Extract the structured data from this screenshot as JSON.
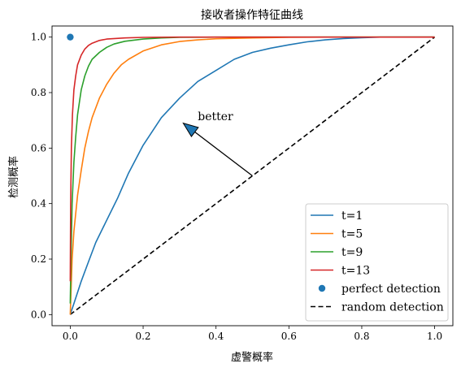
{
  "chart_data": {
    "type": "line",
    "title": "接收者操作特征曲线",
    "xlabel": "虚警概率",
    "ylabel": "检测概率",
    "xlim": [
      -0.05,
      1.05
    ],
    "ylim": [
      -0.04,
      1.04
    ],
    "xticks": [
      0.0,
      0.2,
      0.4,
      0.6,
      0.8,
      1.0
    ],
    "yticks": [
      0.0,
      0.2,
      0.4,
      0.6,
      0.8,
      1.0
    ],
    "tick_labels_x": [
      "0.0",
      "0.2",
      "0.4",
      "0.6",
      "0.8",
      "1.0"
    ],
    "tick_labels_y": [
      "0.0",
      "0.2",
      "0.4",
      "0.6",
      "0.8",
      "1.0"
    ],
    "grid": false,
    "legend_position": "lower-right",
    "series": [
      {
        "name": "t=1",
        "color": "#1f77b4",
        "x": [
          0.0,
          0.01,
          0.02,
          0.03,
          0.05,
          0.07,
          0.1,
          0.13,
          0.16,
          0.2,
          0.25,
          0.3,
          0.35,
          0.4,
          0.45,
          0.5,
          0.55,
          0.6,
          0.65,
          0.7,
          0.75,
          0.8,
          0.85,
          0.9,
          0.95,
          1.0
        ],
        "y": [
          0.0,
          0.04,
          0.08,
          0.12,
          0.19,
          0.26,
          0.34,
          0.42,
          0.51,
          0.61,
          0.71,
          0.78,
          0.84,
          0.88,
          0.92,
          0.945,
          0.96,
          0.972,
          0.983,
          0.99,
          0.995,
          0.998,
          1.0,
          1.0,
          1.0,
          1.0
        ]
      },
      {
        "name": "t=5",
        "color": "#ff7f0e",
        "x": [
          0.0,
          0.005,
          0.01,
          0.02,
          0.03,
          0.04,
          0.05,
          0.06,
          0.08,
          0.1,
          0.12,
          0.14,
          0.16,
          0.2,
          0.25,
          0.3,
          0.35,
          0.4,
          0.5,
          0.6,
          0.7,
          0.8,
          0.9,
          1.0
        ],
        "y": [
          0.0,
          0.2,
          0.3,
          0.43,
          0.52,
          0.6,
          0.66,
          0.71,
          0.78,
          0.83,
          0.87,
          0.9,
          0.92,
          0.95,
          0.972,
          0.984,
          0.99,
          0.994,
          0.997,
          0.999,
          1.0,
          1.0,
          1.0,
          1.0
        ]
      },
      {
        "name": "t=9",
        "color": "#2ca02c",
        "x": [
          0.0,
          0.002,
          0.005,
          0.01,
          0.015,
          0.02,
          0.03,
          0.04,
          0.05,
          0.06,
          0.08,
          0.1,
          0.12,
          0.15,
          0.2,
          0.25,
          0.3,
          0.4,
          0.5,
          0.6,
          0.7,
          0.8,
          0.9,
          1.0
        ],
        "y": [
          0.04,
          0.2,
          0.4,
          0.55,
          0.64,
          0.72,
          0.81,
          0.86,
          0.895,
          0.92,
          0.945,
          0.963,
          0.975,
          0.985,
          0.993,
          0.997,
          0.999,
          1.0,
          1.0,
          1.0,
          1.0,
          1.0,
          1.0,
          1.0
        ]
      },
      {
        "name": "t=13",
        "color": "#d62728",
        "x": [
          0.0,
          0.001,
          0.003,
          0.006,
          0.01,
          0.015,
          0.02,
          0.03,
          0.04,
          0.05,
          0.06,
          0.08,
          0.1,
          0.15,
          0.2,
          0.3,
          0.4,
          0.5,
          0.6,
          0.7,
          0.8,
          0.9,
          1.0
        ],
        "y": [
          0.12,
          0.4,
          0.6,
          0.72,
          0.81,
          0.86,
          0.9,
          0.935,
          0.957,
          0.97,
          0.978,
          0.988,
          0.993,
          0.997,
          0.999,
          1.0,
          1.0,
          1.0,
          1.0,
          1.0,
          1.0,
          1.0,
          1.0
        ]
      }
    ],
    "perfect_point": {
      "name": "perfect detection",
      "color": "#1f77b4",
      "x": 0.0,
      "y": 1.0
    },
    "random_line": {
      "name": "random detection",
      "color": "#000000",
      "x": [
        0.0,
        1.0
      ],
      "y": [
        0.0,
        1.0
      ]
    },
    "annotation": {
      "text": "better",
      "arrow_from": [
        0.5,
        0.5
      ],
      "arrow_to": [
        0.31,
        0.69
      ],
      "text_at": [
        0.35,
        0.7
      ]
    }
  }
}
